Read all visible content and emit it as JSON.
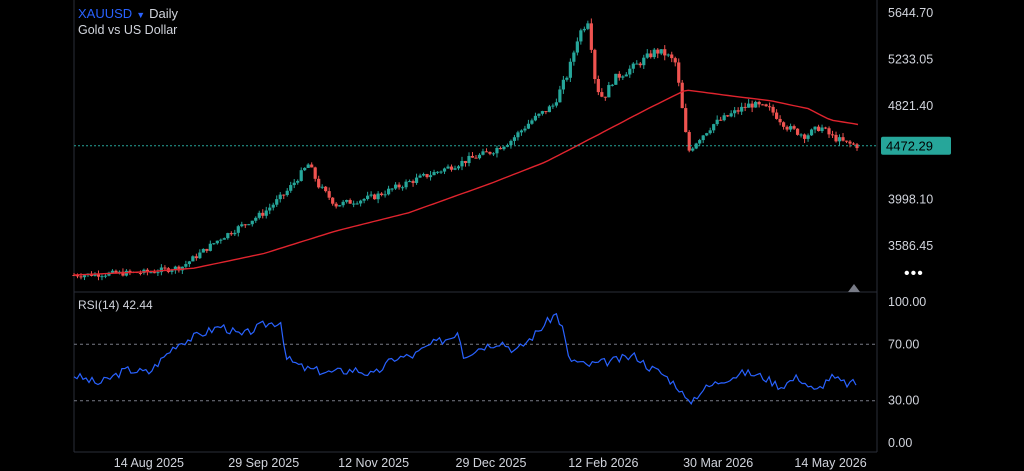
{
  "header": {
    "symbol": "XAUUSD",
    "interval": "Daily",
    "description": "Gold vs US Dollar"
  },
  "rsi": {
    "label": "RSI(14)",
    "value": "42.44"
  },
  "colors": {
    "background": "#000000",
    "up": "#26a69a",
    "down": "#ef5350",
    "ma": "#e0242e",
    "rsi": "#2962ff",
    "last_price": "#26a69a",
    "grid_dashed": "#787b86"
  },
  "more_icon": "ellipsis-icon",
  "chart_data": [
    {
      "type": "candlestick",
      "title": "XAUUSD Daily",
      "y_ticks": [
        "5644.70",
        "5233.05",
        "4821.40",
        "3998.10",
        "3586.45"
      ],
      "ylim": [
        3300,
        5800
      ],
      "x_ticks": [
        "14 Aug 2025",
        "29 Sep 2025",
        "12 Nov 2025",
        "29 Dec 2025",
        "12 Feb 2026",
        "30 Mar 2026",
        "14 May 2026"
      ],
      "last_price": "4472.29",
      "last_price_value": 4472.29,
      "price_keypoints": [
        [
          "2025-07-15",
          3330
        ],
        [
          "2025-08-14",
          3355
        ],
        [
          "2025-08-27",
          3400
        ],
        [
          "2025-09-12",
          3660
        ],
        [
          "2025-09-29",
          3880
        ],
        [
          "2025-10-08",
          4060
        ],
        [
          "2025-10-17",
          4310
        ],
        [
          "2025-10-21",
          4120
        ],
        [
          "2025-10-28",
          3950
        ],
        [
          "2025-11-12",
          4020
        ],
        [
          "2025-11-26",
          4150
        ],
        [
          "2025-12-12",
          4280
        ],
        [
          "2025-12-20",
          4350
        ],
        [
          "2025-12-29",
          4420
        ],
        [
          "2026-01-06",
          4520
        ],
        [
          "2026-01-14",
          4690
        ],
        [
          "2026-01-23",
          4830
        ],
        [
          "2026-01-29",
          5120
        ],
        [
          "2026-02-02",
          5450
        ],
        [
          "2026-02-06",
          5590
        ],
        [
          "2026-02-09",
          5000
        ],
        [
          "2026-02-12",
          4890
        ],
        [
          "2026-02-16",
          5060
        ],
        [
          "2026-02-25",
          5180
        ],
        [
          "2026-03-05",
          5310
        ],
        [
          "2026-03-09",
          5280
        ],
        [
          "2026-03-13",
          5200
        ],
        [
          "2026-03-16",
          4730
        ],
        [
          "2026-03-18",
          4420
        ],
        [
          "2026-03-22",
          4530
        ],
        [
          "2026-03-28",
          4660
        ],
        [
          "2026-04-05",
          4760
        ],
        [
          "2026-04-12",
          4840
        ],
        [
          "2026-04-20",
          4790
        ],
        [
          "2026-04-27",
          4630
        ],
        [
          "2026-05-04",
          4560
        ],
        [
          "2026-05-10",
          4640
        ],
        [
          "2026-05-14",
          4560
        ],
        [
          "2026-05-20",
          4495
        ],
        [
          "2026-05-25",
          4472
        ]
      ],
      "ma_keypoints": [
        [
          "2025-07-15",
          3330
        ],
        [
          "2025-08-14",
          3360
        ],
        [
          "2025-09-01",
          3390
        ],
        [
          "2025-09-29",
          3520
        ],
        [
          "2025-10-28",
          3720
        ],
        [
          "2025-11-26",
          3880
        ],
        [
          "2025-12-29",
          4140
        ],
        [
          "2026-01-20",
          4330
        ],
        [
          "2026-02-10",
          4570
        ],
        [
          "2026-03-01",
          4790
        ],
        [
          "2026-03-17",
          4965
        ],
        [
          "2026-04-05",
          4910
        ],
        [
          "2026-04-20",
          4870
        ],
        [
          "2026-05-05",
          4800
        ],
        [
          "2026-05-14",
          4700
        ],
        [
          "2026-05-25",
          4660
        ]
      ],
      "moving_average": "red line"
    },
    {
      "type": "line",
      "title": "RSI(14)",
      "y_ticks": [
        "100.00",
        "70.00",
        "30.00",
        "0.00"
      ],
      "ylim": [
        0,
        100
      ],
      "levels": [
        70,
        30
      ],
      "rsi_keypoints": [
        [
          "2025-07-15",
          48
        ],
        [
          "2025-07-25",
          42
        ],
        [
          "2025-08-05",
          52
        ],
        [
          "2025-08-14",
          50
        ],
        [
          "2025-08-25",
          70
        ],
        [
          "2025-09-05",
          78
        ],
        [
          "2025-09-12",
          83
        ],
        [
          "2025-09-20",
          76
        ],
        [
          "2025-09-29",
          84
        ],
        [
          "2025-10-06",
          86
        ],
        [
          "2025-10-08",
          60
        ],
        [
          "2025-10-15",
          53
        ],
        [
          "2025-10-25",
          50
        ],
        [
          "2025-11-05",
          52
        ],
        [
          "2025-11-12",
          48
        ],
        [
          "2025-11-20",
          60
        ],
        [
          "2025-11-28",
          62
        ],
        [
          "2025-12-05",
          70
        ],
        [
          "2025-12-13",
          75
        ],
        [
          "2025-12-16",
          80
        ],
        [
          "2025-12-18",
          62
        ],
        [
          "2025-12-25",
          68
        ],
        [
          "2026-01-02",
          72
        ],
        [
          "2026-01-08",
          65
        ],
        [
          "2026-01-15",
          76
        ],
        [
          "2026-01-24",
          92
        ],
        [
          "2026-01-27",
          80
        ],
        [
          "2026-01-29",
          60
        ],
        [
          "2026-02-05",
          55
        ],
        [
          "2026-02-15",
          58
        ],
        [
          "2026-02-25",
          62
        ],
        [
          "2026-03-02",
          54
        ],
        [
          "2026-03-07",
          50
        ],
        [
          "2026-03-14",
          40
        ],
        [
          "2026-03-18",
          28
        ],
        [
          "2026-03-24",
          38
        ],
        [
          "2026-04-01",
          45
        ],
        [
          "2026-04-10",
          50
        ],
        [
          "2026-04-17",
          47
        ],
        [
          "2026-04-24",
          40
        ],
        [
          "2026-05-01",
          47
        ],
        [
          "2026-05-08",
          36
        ],
        [
          "2026-05-14",
          47
        ],
        [
          "2026-05-20",
          42
        ],
        [
          "2026-05-25",
          42.44
        ]
      ]
    }
  ]
}
